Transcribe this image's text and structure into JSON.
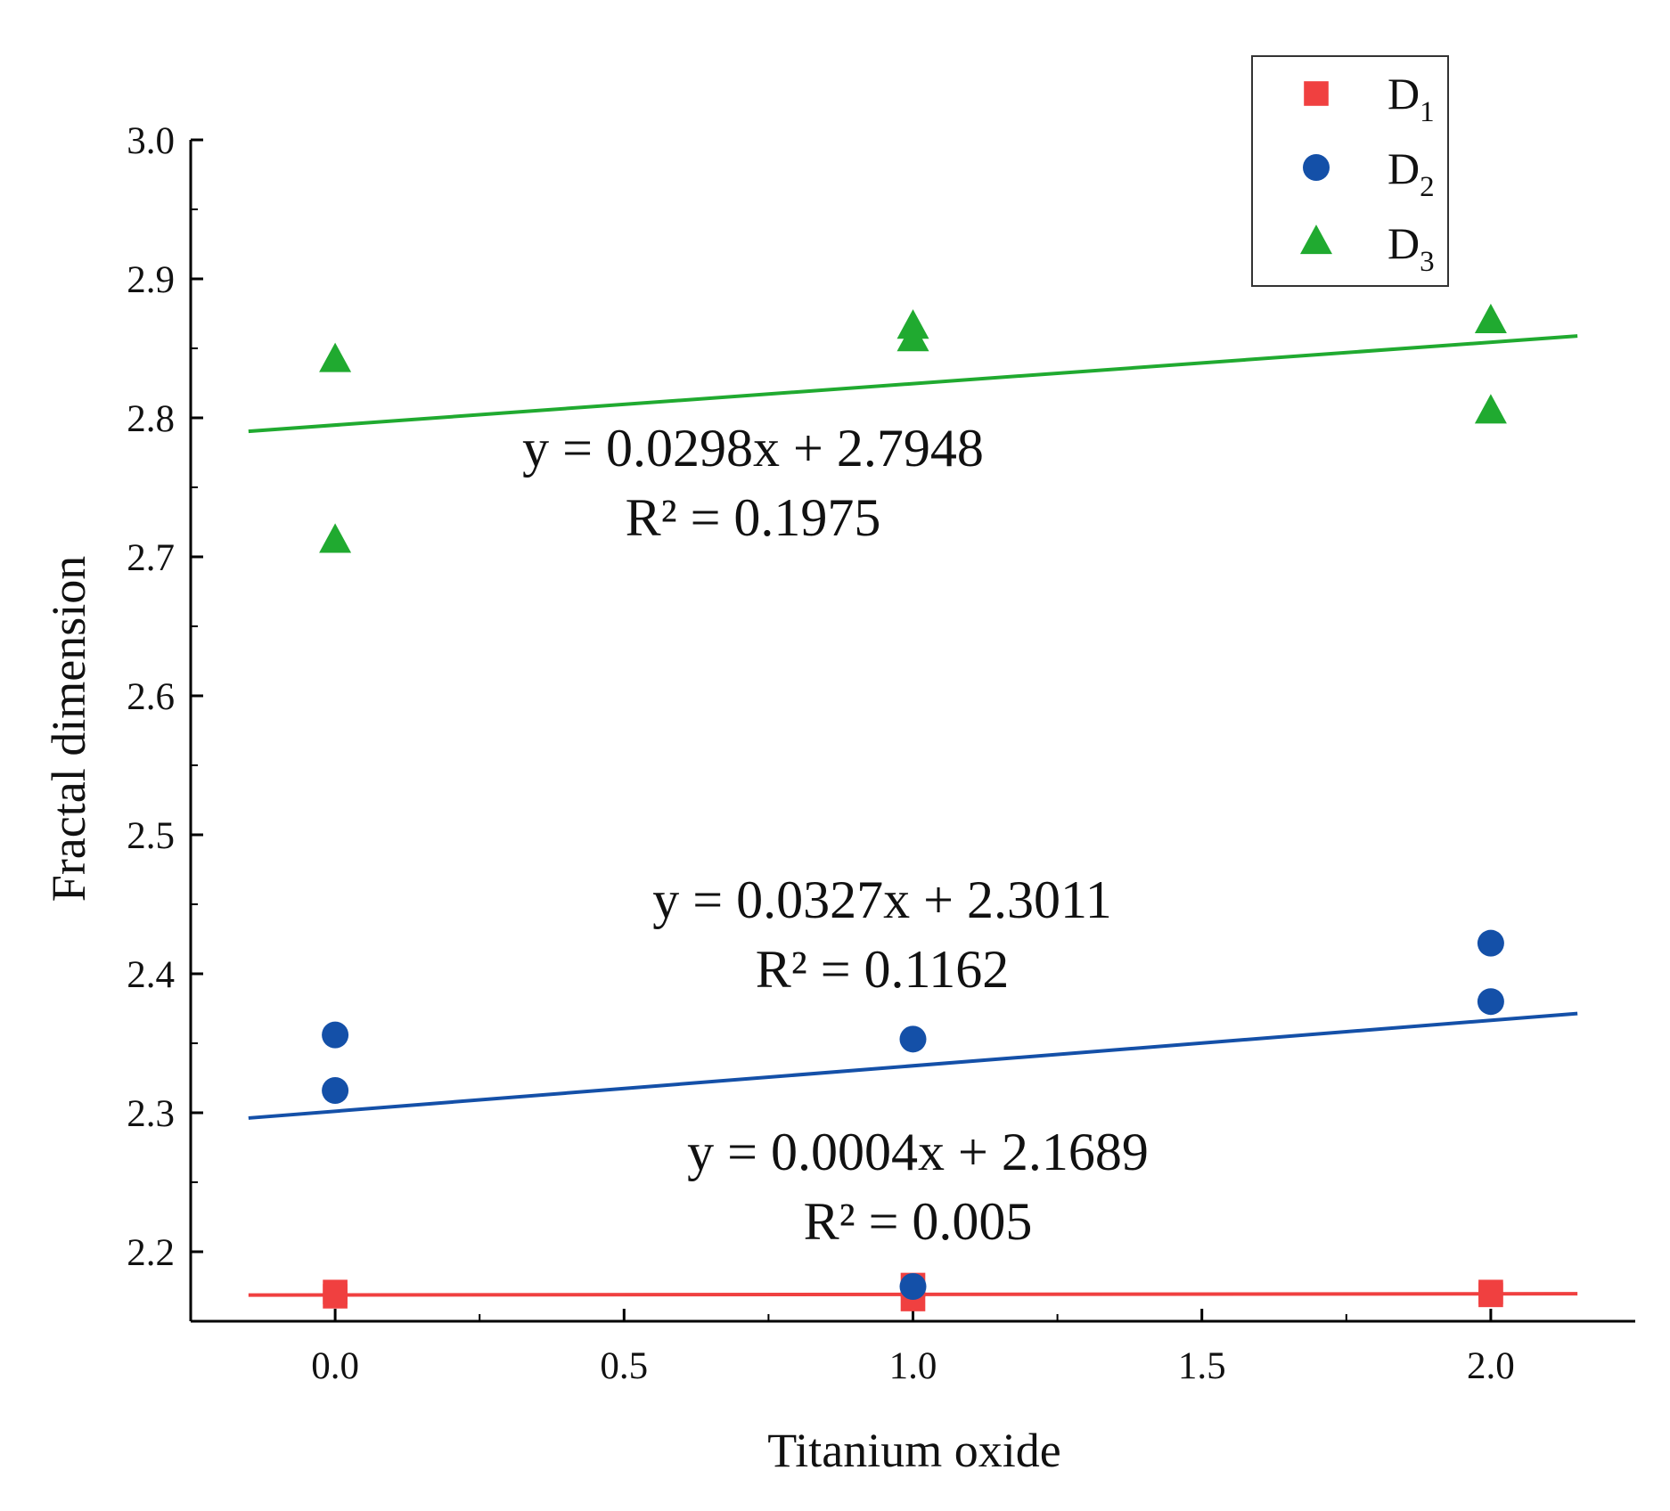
{
  "chart_data": {
    "type": "scatter",
    "title": "",
    "xlabel": "Titanium oxide",
    "ylabel": "Fractal dimension",
    "xlim": [
      -0.25,
      2.25
    ],
    "ylim": [
      2.15,
      3.0
    ],
    "xticks": [
      0.0,
      0.5,
      1.0,
      1.5,
      2.0
    ],
    "xtick_labels": [
      "0.0",
      "0.5",
      "1.0",
      "1.5",
      "2.0"
    ],
    "yticks": [
      2.2,
      2.3,
      2.4,
      2.5,
      2.6,
      2.7,
      2.8,
      2.9,
      3.0
    ],
    "ytick_labels": [
      "2.2",
      "2.3",
      "2.4",
      "2.5",
      "2.6",
      "2.7",
      "2.8",
      "2.9",
      "3.0"
    ],
    "grid": false,
    "legend_position": "top-right",
    "series": [
      {
        "name": "D",
        "subscript": "1",
        "marker": "square",
        "color": "#f04040",
        "points": [
          [
            0,
            2.168
          ],
          [
            0,
            2.171
          ],
          [
            1,
            2.166
          ],
          [
            1,
            2.176
          ],
          [
            2,
            2.169
          ],
          [
            2,
            2.171
          ]
        ],
        "fit": {
          "slope": 0.0004,
          "intercept": 2.1689,
          "x_range": [
            -0.15,
            2.15
          ]
        },
        "equation": "y = 0.0004x + 2.1689",
        "r_squared": "R² = 0.005"
      },
      {
        "name": "D",
        "subscript": "2",
        "marker": "circle",
        "color": "#1450a8",
        "points": [
          [
            0,
            2.356
          ],
          [
            0,
            2.316
          ],
          [
            1,
            2.353
          ],
          [
            1,
            2.175
          ],
          [
            2,
            2.422
          ],
          [
            2,
            2.38
          ]
        ],
        "fit": {
          "slope": 0.0327,
          "intercept": 2.3011,
          "x_range": [
            -0.15,
            2.15
          ]
        },
        "equation": "y = 0.0327x + 2.3011",
        "r_squared": "R² = 0.1162"
      },
      {
        "name": "D",
        "subscript": "3",
        "marker": "triangle",
        "color": "#20aa30",
        "points": [
          [
            0,
            2.842
          ],
          [
            0,
            2.712
          ],
          [
            1,
            2.866
          ],
          [
            1,
            2.857
          ],
          [
            2,
            2.87
          ],
          [
            2,
            2.805
          ]
        ],
        "fit": {
          "slope": 0.0298,
          "intercept": 2.7948,
          "x_range": [
            -0.15,
            2.15
          ]
        },
        "equation": "y = 0.0298x + 2.7948",
        "r_squared": "R² = 0.1975"
      }
    ]
  }
}
